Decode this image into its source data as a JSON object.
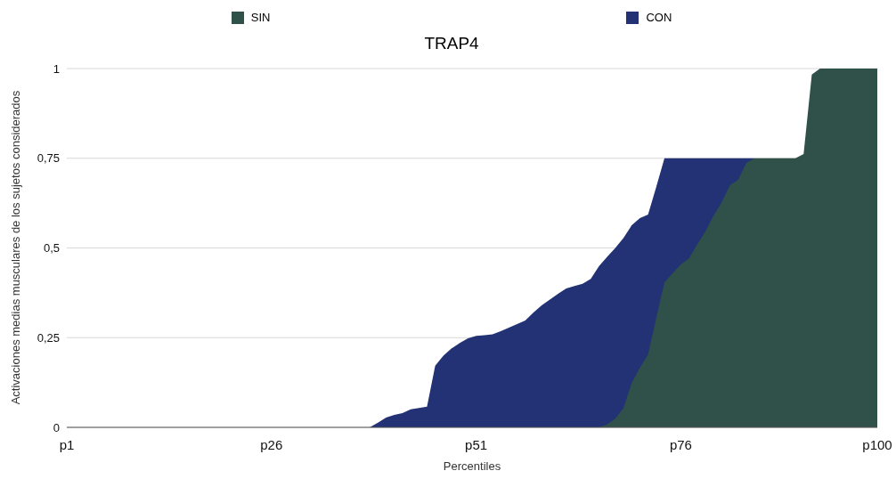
{
  "chart_data": {
    "type": "area",
    "title": "TRAP4",
    "xlabel": "Percentiles",
    "ylabel": "Activaciones medias musculares de los sujetos considerados",
    "categories": [
      "p1",
      null,
      null,
      null,
      null,
      null,
      null,
      null,
      null,
      null,
      null,
      null,
      null,
      null,
      null,
      null,
      null,
      null,
      null,
      null,
      null,
      null,
      null,
      null,
      null,
      "p26",
      null,
      null,
      null,
      null,
      null,
      null,
      null,
      null,
      null,
      null,
      null,
      null,
      null,
      null,
      null,
      null,
      null,
      null,
      null,
      null,
      null,
      null,
      null,
      null,
      "p51",
      null,
      null,
      null,
      null,
      null,
      null,
      null,
      null,
      null,
      null,
      null,
      null,
      null,
      null,
      null,
      null,
      null,
      null,
      null,
      null,
      null,
      null,
      null,
      null,
      "p76",
      null,
      null,
      null,
      null,
      null,
      null,
      null,
      null,
      null,
      null,
      null,
      null,
      null,
      null,
      null,
      null,
      null,
      null,
      null,
      null,
      null,
      null,
      null,
      "p100"
    ],
    "series": [
      {
        "name": "SIN",
        "color": "#30514a",
        "values": [
          0,
          0,
          0,
          0,
          0,
          0,
          0,
          0,
          0,
          0,
          0,
          0,
          0,
          0,
          0,
          0,
          0,
          0,
          0,
          0,
          0,
          0,
          0,
          0,
          0,
          0,
          0,
          0,
          0,
          0,
          0,
          0,
          0,
          0,
          0,
          0,
          0,
          0,
          0,
          0,
          0,
          0,
          0,
          0,
          0,
          0,
          0,
          0,
          0,
          0,
          0,
          0,
          0,
          0,
          0,
          0,
          0,
          0,
          0,
          0,
          0,
          0,
          0,
          0,
          0,
          0,
          0.008,
          0.025,
          0.054,
          0.124,
          0.166,
          0.203,
          0.305,
          0.404,
          0.43,
          0.454,
          0.471,
          0.51,
          0.546,
          0.59,
          0.628,
          0.675,
          0.69,
          0.737,
          0.75,
          0.75,
          0.75,
          0.75,
          0.75,
          0.75,
          0.762,
          0.983,
          1,
          1,
          1,
          1,
          1,
          1,
          1,
          1
        ]
      },
      {
        "name": "CON",
        "color": "#233274",
        "values": [
          0,
          0,
          0,
          0,
          0,
          0,
          0,
          0,
          0,
          0,
          0,
          0,
          0,
          0,
          0,
          0,
          0,
          0,
          0,
          0,
          0,
          0,
          0,
          0,
          0,
          0,
          0,
          0,
          0,
          0,
          0,
          0,
          0,
          0,
          0,
          0,
          0,
          0,
          0.013,
          0.027,
          0.035,
          0.04,
          0.05,
          0.054,
          0.058,
          0.172,
          0.2,
          0.22,
          0.235,
          0.248,
          0.255,
          0.257,
          0.259,
          0.268,
          0.278,
          0.288,
          0.298,
          0.32,
          0.34,
          0.356,
          0.372,
          0.387,
          0.394,
          0.4,
          0.414,
          0.449,
          0.475,
          0.5,
          0.528,
          0.563,
          0.583,
          0.593,
          0.67,
          0.75,
          0.75,
          0.75,
          0.75,
          0.75,
          0.75,
          0.75,
          0.75,
          0.75,
          0.75,
          0.75,
          0.75,
          null,
          null,
          null,
          null,
          null,
          null,
          null,
          null,
          null,
          null,
          null,
          null,
          null,
          null,
          null
        ]
      }
    ],
    "ylim": [
      0,
      1
    ],
    "yticks": [
      0,
      {
        "value": 0.25,
        "label": "0,25"
      },
      {
        "value": 0.5,
        "label": "0,5"
      },
      {
        "value": 0.75,
        "label": "0,75"
      },
      1
    ],
    "grid": "y",
    "legend": "top"
  }
}
